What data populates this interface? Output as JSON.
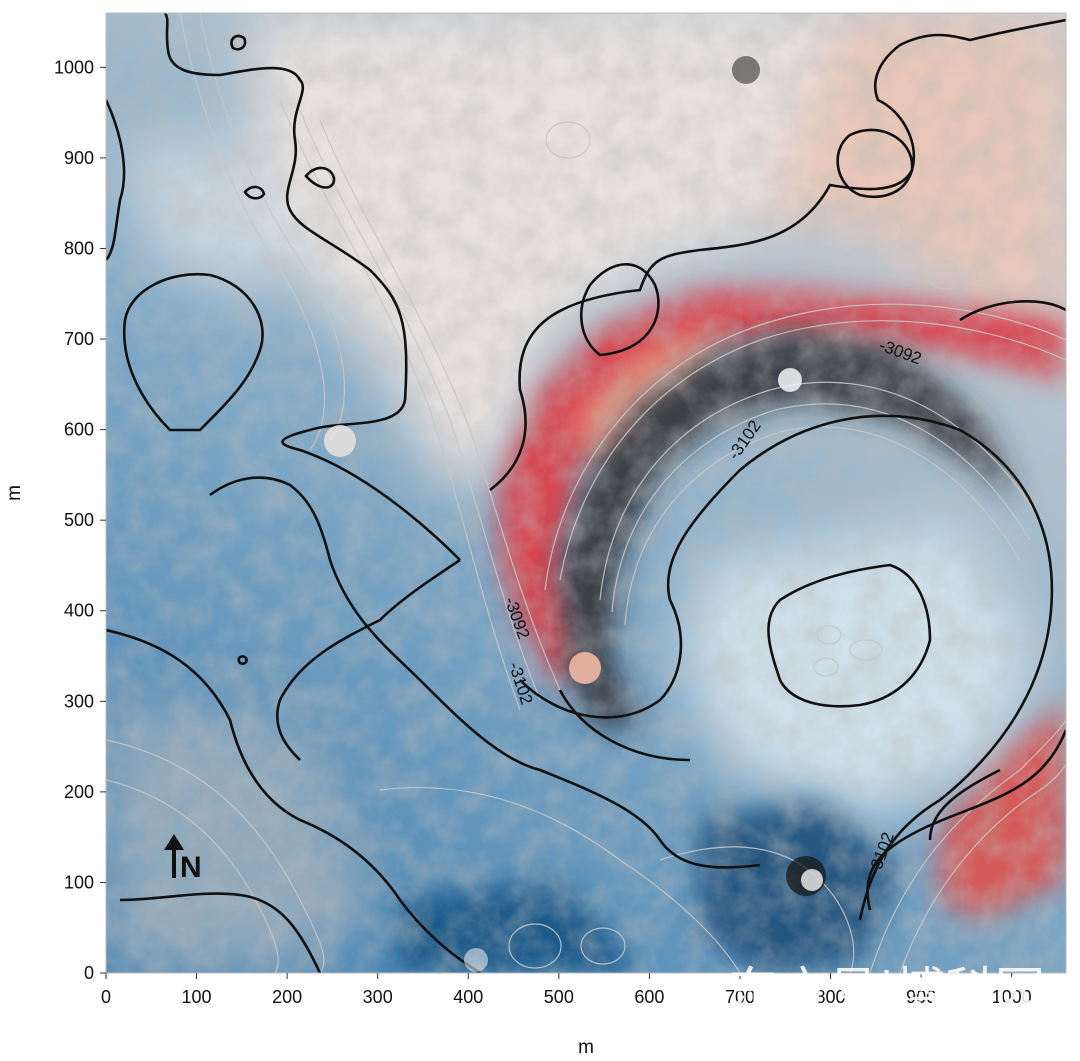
{
  "map": {
    "x_axis": {
      "label": "m",
      "min": 0,
      "max": 1060,
      "ticks": [
        0,
        100,
        200,
        300,
        400,
        500,
        600,
        700,
        800,
        900,
        1000
      ]
    },
    "y_axis": {
      "label": "m",
      "min": 0,
      "max": 1060,
      "ticks": [
        0,
        100,
        200,
        300,
        400,
        500,
        600,
        700,
        800,
        900,
        1000
      ]
    },
    "contour_labels": [
      {
        "text": "-3092",
        "x": 875,
        "y": 680,
        "angle": 20
      },
      {
        "text": "-3102",
        "x": 710,
        "y": 585,
        "angle": -55
      },
      {
        "text": "-3092",
        "x": 448,
        "y": 390,
        "angle": 70
      },
      {
        "text": "-3102",
        "x": 452,
        "y": 318,
        "angle": 72
      },
      {
        "text": "-3102",
        "x": 862,
        "y": 130,
        "angle": -70
      }
    ],
    "north_arrow": {
      "label": "N"
    },
    "watermark": "东方号|博科园",
    "colors": {
      "deep": "#2b6aa0",
      "shallow": "#d9e6ef",
      "high": "#c9293a",
      "mid": "#e8a78e"
    }
  }
}
